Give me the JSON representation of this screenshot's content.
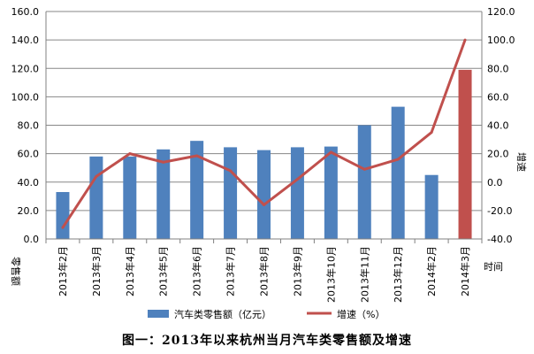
{
  "caption": "图一：2013年以来杭州当月汽车类零售额及增速",
  "chart_data": {
    "type": "bar",
    "categories": [
      "2013年2月",
      "2013年3月",
      "2013年4月",
      "2013年5月",
      "2013年6月",
      "2013年7月",
      "2013年8月",
      "2013年9月",
      "2013年10月",
      "2013年11月",
      "2013年12月",
      "2014年2月",
      "2014年3月"
    ],
    "ylabel": "零售额",
    "y2label": "增速",
    "xlabel": "时间",
    "ylim": [
      0,
      160
    ],
    "y2lim": [
      -40,
      120
    ],
    "y_ticks": [
      "0.0",
      "20.0",
      "40.0",
      "60.0",
      "80.0",
      "100.0",
      "120.0",
      "140.0",
      "160.0"
    ],
    "y2_ticks": [
      "-40.0",
      "-20.0",
      "0.0",
      "20.0",
      "40.0",
      "60.0",
      "80.0",
      "100.0",
      "120.0"
    ],
    "grid": true,
    "legend_position": "bottom",
    "series": [
      {
        "name": "汽车类零售额（亿元）",
        "kind": "bar",
        "axis": "left",
        "color": "#4F81BD",
        "highlight": {
          "index": 12,
          "color": "#C0504D"
        },
        "values": [
          33,
          58,
          58,
          63,
          69,
          64.5,
          62.5,
          64.5,
          65,
          80,
          93,
          45,
          119
        ]
      },
      {
        "name": "增速（%）",
        "kind": "line",
        "axis": "right",
        "color": "#C0504D",
        "values": [
          -32,
          4,
          20,
          14,
          18.5,
          8,
          -16,
          2,
          21,
          9,
          16,
          35,
          100
        ]
      }
    ]
  }
}
